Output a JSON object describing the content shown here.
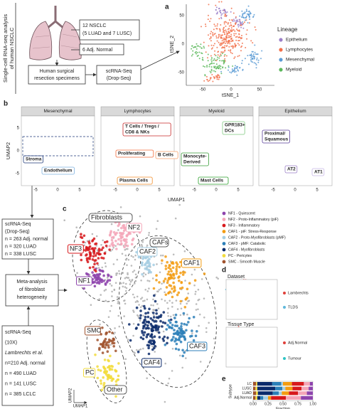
{
  "workflow": {
    "side_title": [
      "Single-cell RNA-seq analysis",
      "of human NSCLC"
    ],
    "samples_tumor": [
      "12 NSCLC",
      "(5 LUAD and 7 LUSC)"
    ],
    "samples_normal": "6 Adj. Normal",
    "specimens": [
      "Human surgical",
      "resection specimens"
    ],
    "method": [
      "scRNA-Seq",
      "(Drop-Seq)"
    ]
  },
  "panel_a": {
    "label": "a",
    "x_title": "tSNE_1",
    "y_title": "tSNE_2",
    "xticks": [
      "-50",
      "0",
      "50"
    ],
    "yticks": [
      "50",
      "0",
      "-50"
    ],
    "legend_title": "Lineage",
    "legend": [
      {
        "name": "Epithelium",
        "color": "#9b7fc8"
      },
      {
        "name": "Lymphocytes",
        "color": "#f2704a"
      },
      {
        "name": "Mesenchymal",
        "color": "#5b9bd5"
      },
      {
        "name": "Myeloid",
        "color": "#5cb85c"
      }
    ]
  },
  "panel_b": {
    "label": "b",
    "x_title": "UMAP1",
    "y_title": "UMAP2",
    "xticks": [
      "-5",
      "0",
      "5"
    ],
    "yticks": [
      "5",
      "0",
      "-5"
    ],
    "facets": [
      {
        "title": "Mesenchymal",
        "labels": [
          [
            "Stroma"
          ],
          [
            "Endothelium"
          ]
        ]
      },
      {
        "title": "Lymphocytes",
        "labels": [
          [
            "T Cells / Tregs /",
            "CD8 & NKs"
          ],
          [
            "Proliferating"
          ],
          [
            "B Cells"
          ],
          [
            "Plasma Cells"
          ]
        ]
      },
      {
        "title": "Myeloid",
        "labels": [
          [
            "GPR183+",
            "DCs"
          ],
          [
            "Monocyte-",
            "Derived"
          ],
          [
            "Mast Cells"
          ]
        ]
      },
      {
        "title": "Epithelium",
        "labels": [
          [
            "Proximal/",
            "Squamous"
          ],
          [
            "AT2"
          ],
          [
            "AT1"
          ]
        ]
      }
    ]
  },
  "left_boxes": {
    "dropseq": [
      "scRNA-Seq",
      "(Drop-Seq)",
      "n = 263 Adj. normal",
      "n = 320 LUAD",
      "n = 338 LUSC"
    ],
    "meta": [
      "Meta-analysis",
      "of fibroblast",
      "heterogeneity"
    ],
    "tenx": [
      "scRNA-Seq",
      "(10X)",
      "Lambrechts et al.",
      "n=210 Adj. normal",
      "n = 490 LUAD",
      "n = 141 LUSC",
      "n = 385 LCLC"
    ]
  },
  "panel_c": {
    "label": "c",
    "groups": [
      "Fibroblasts",
      "CAFs",
      "Other"
    ],
    "clusters": [
      "NF1",
      "NF2",
      "NF3",
      "CAF1",
      "CAF2",
      "CAF3",
      "CAF4",
      "PC",
      "SMC"
    ],
    "x_title": "UMAP1",
    "y_title": "UMAP2"
  },
  "panel_d": {
    "label": "d",
    "dataset_title": "Dataset",
    "dataset_legend": [
      {
        "name": "Lambrechts",
        "color": "#e0403a"
      },
      {
        "name": "TLDS",
        "color": "#5fb8dc"
      }
    ],
    "tissue_title": "Tissue Type",
    "tissue_legend": [
      {
        "name": "Adj.Normal",
        "color": "#e0403a"
      },
      {
        "name": "Tumour",
        "color": "#2ec4c4"
      }
    ]
  },
  "panel_e_label": "e",
  "chart_data": {
    "type": "bar",
    "orientation": "horizontal",
    "stacked": true,
    "categories": [
      "LC",
      "LUSC",
      "LUAD",
      "Adj.Normal"
    ],
    "x_title": "Fraction",
    "y_title": "Subtype",
    "xlim": [
      0,
      1
    ],
    "xticks": [
      {
        "value": 0,
        "label": "0.00"
      },
      {
        "value": 0.25,
        "label": "0.25"
      },
      {
        "value": 0.5,
        "label": "0.50"
      },
      {
        "value": 0.75,
        "label": "0.75"
      },
      {
        "value": 1,
        "label": "1.00"
      }
    ],
    "series": [
      {
        "name": "NF1 - Quiescent",
        "color": "#8e44ad",
        "values": [
          0.05,
          0.07,
          0.1,
          0.2
        ]
      },
      {
        "name": "NF2 - Proto-Inflammatory (piF)",
        "color": "#f4a6b8",
        "values": [
          0.1,
          0.12,
          0.15,
          0.25
        ]
      },
      {
        "name": "NF3 - Inflammatory",
        "color": "#d7191c",
        "values": [
          0.2,
          0.15,
          0.15,
          0.25
        ]
      },
      {
        "name": "CAF1 - piF: Stress-Response",
        "color": "#f39c12",
        "values": [
          0.15,
          0.12,
          0.12,
          0.05
        ]
      },
      {
        "name": "CAF2 - Proto-Myofibroblasts (pMF)",
        "color": "#a6cee3",
        "values": [
          0.03,
          0.05,
          0.05,
          0.08
        ]
      },
      {
        "name": "CAF3 - pMF: Catabolic",
        "color": "#2c7fb8",
        "values": [
          0.15,
          0.12,
          0.1,
          0.05
        ]
      },
      {
        "name": "CAF4 - Myofibroblasts",
        "color": "#0b2a6b",
        "values": [
          0.25,
          0.3,
          0.25,
          0.05
        ]
      },
      {
        "name": "PC - Pericytes",
        "color": "#f2dc3c",
        "values": [
          0.02,
          0.03,
          0.03,
          0.03
        ]
      },
      {
        "name": "SMC - Smooth Muscle",
        "color": "#a0522d",
        "values": [
          0.05,
          0.04,
          0.05,
          0.04
        ]
      }
    ]
  }
}
